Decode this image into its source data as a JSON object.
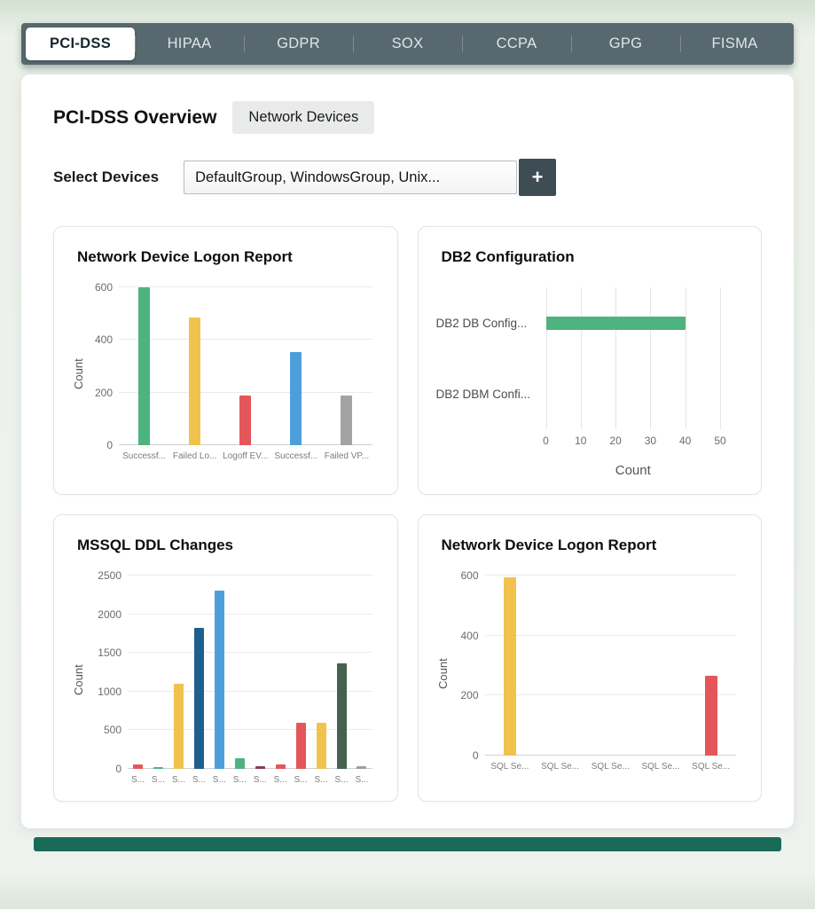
{
  "tabs": [
    {
      "label": "PCI-DSS",
      "active": true
    },
    {
      "label": "HIPAA",
      "active": false
    },
    {
      "label": "GDPR",
      "active": false
    },
    {
      "label": "SOX",
      "active": false
    },
    {
      "label": "CCPA",
      "active": false
    },
    {
      "label": "GPG",
      "active": false
    },
    {
      "label": "FISMA",
      "active": false
    }
  ],
  "header": {
    "title": "PCI-DSS Overview",
    "badge": "Network Devices"
  },
  "device_select": {
    "label": "Select Devices",
    "value": "DefaultGroup, WindowsGroup, Unix...",
    "add_button_label": "+"
  },
  "colors": {
    "topbar": "#57686f",
    "accent_green": "#4db380",
    "accent_yellow": "#f2c24e",
    "accent_red": "#e4565a",
    "accent_blue": "#4d9fdc"
  },
  "chart_data": [
    {
      "type": "bar",
      "title": "Network Device Logon Report",
      "categories": [
        "Successf...",
        "Failed Lo...",
        "Logoff EV...",
        "Successf...",
        "Failed VP..."
      ],
      "values": [
        600,
        485,
        190,
        355,
        190
      ],
      "colors": [
        "#4db380",
        "#f2c24e",
        "#e4565a",
        "#4d9fdc",
        "#a3a3a3"
      ],
      "ylabel": "Count",
      "ylim": [
        0,
        600
      ],
      "yticks": [
        0,
        200,
        400,
        600
      ],
      "grid": true,
      "legend": false
    },
    {
      "type": "hbar",
      "title": "DB2 Configuration",
      "categories": [
        "DB2 DB Config...",
        "DB2 DBM Confi..."
      ],
      "values": [
        40,
        0
      ],
      "colors": [
        "#4db380",
        "#4db380"
      ],
      "xlabel": "Count",
      "xlim": [
        0,
        50
      ],
      "xticks": [
        0,
        10,
        20,
        30,
        40,
        50
      ],
      "grid": true,
      "legend": false
    },
    {
      "type": "bar",
      "title": "MSSQL DDL Changes",
      "categories": [
        "S...",
        "S...",
        "S...",
        "S...",
        "S...",
        "S...",
        "S...",
        "S...",
        "S...",
        "S...",
        "S...",
        "S..."
      ],
      "values": [
        60,
        20,
        1100,
        1820,
        2300,
        140,
        40,
        60,
        600,
        600,
        1360,
        40
      ],
      "colors": [
        "#e4565a",
        "#4db380",
        "#f2c24e",
        "#1f5f8e",
        "#4d9fdc",
        "#4db380",
        "#8b3a52",
        "#e4565a",
        "#e4565a",
        "#f2c24e",
        "#44624f",
        "#9e9e9e"
      ],
      "ylabel": "Count",
      "ylim": [
        0,
        2500
      ],
      "yticks": [
        0,
        500,
        1000,
        1500,
        2000,
        2500
      ],
      "grid": true,
      "legend": false
    },
    {
      "type": "bar",
      "title": "Network Device Logon Report",
      "categories": [
        "SQL Se...",
        "SQL Se...",
        "SQL Se...",
        "SQL Se...",
        "SQL Se..."
      ],
      "values": [
        595,
        0,
        0,
        0,
        265
      ],
      "colors": [
        "#f2c24e",
        "#f2c24e",
        "#f2c24e",
        "#f2c24e",
        "#e4565a"
      ],
      "ylabel": "Count",
      "ylim": [
        0,
        600
      ],
      "yticks": [
        0,
        200,
        400,
        600
      ],
      "grid": true,
      "legend": false
    }
  ]
}
